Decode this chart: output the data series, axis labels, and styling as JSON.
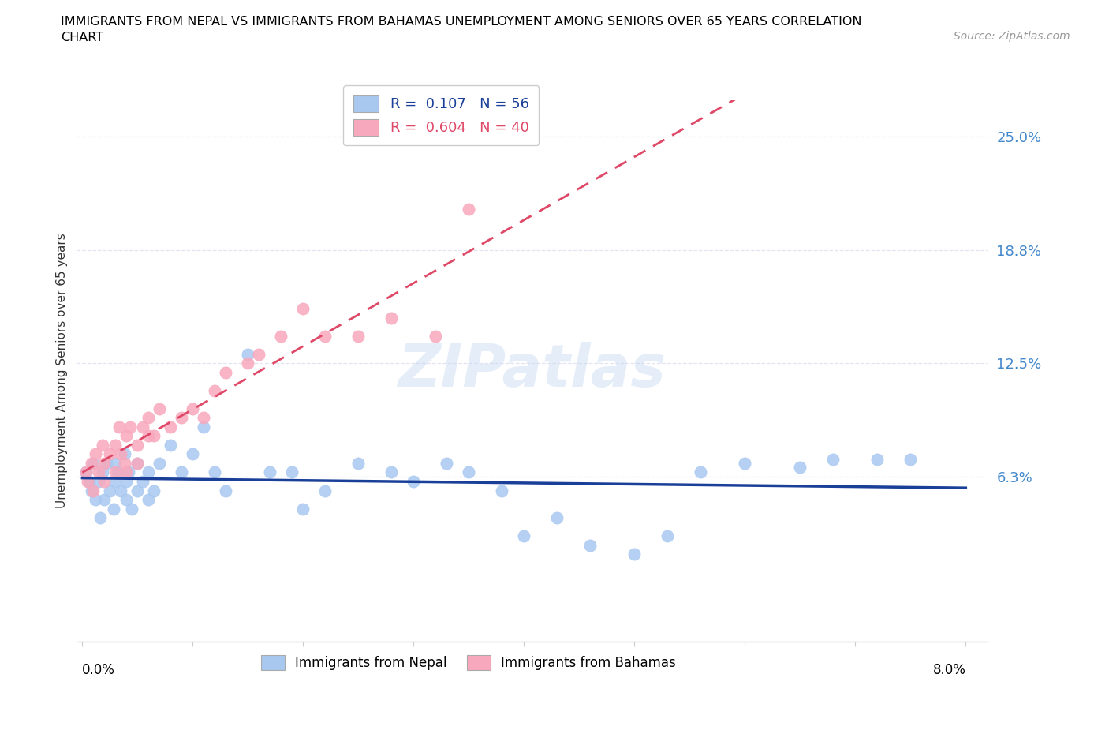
{
  "title_line1": "IMMIGRANTS FROM NEPAL VS IMMIGRANTS FROM BAHAMAS UNEMPLOYMENT AMONG SENIORS OVER 65 YEARS CORRELATION",
  "title_line2": "CHART",
  "source": "Source: ZipAtlas.com",
  "ylabel": "Unemployment Among Seniors over 65 years",
  "ytick_vals": [
    0.0,
    0.0625,
    0.125,
    0.1875,
    0.25
  ],
  "ytick_labels": [
    "",
    "6.3%",
    "12.5%",
    "18.8%",
    "25.0%"
  ],
  "xlim": [
    -0.0005,
    0.082
  ],
  "ylim": [
    -0.028,
    0.27
  ],
  "nepal_color": "#a8c8f0",
  "bahamas_color": "#f8a8bc",
  "nepal_line_color": "#1a3f99",
  "bahamas_line_color": "#e04868",
  "ytick_color": "#4488cc",
  "legend_nepal_R": "0.107",
  "legend_nepal_N": "56",
  "legend_bahamas_R": "0.604",
  "legend_bahamas_N": "40",
  "watermark": "ZIPatlas",
  "nepal_x": [
    0.0003,
    0.0006,
    0.0008,
    0.001,
    0.0012,
    0.0015,
    0.0016,
    0.0018,
    0.002,
    0.0022,
    0.0025,
    0.0028,
    0.003,
    0.003,
    0.0032,
    0.0035,
    0.0038,
    0.004,
    0.004,
    0.0042,
    0.0045,
    0.005,
    0.005,
    0.0055,
    0.006,
    0.006,
    0.0065,
    0.007,
    0.008,
    0.009,
    0.01,
    0.011,
    0.012,
    0.013,
    0.015,
    0.017,
    0.019,
    0.02,
    0.022,
    0.025,
    0.028,
    0.03,
    0.033,
    0.035,
    0.038,
    0.04,
    0.043,
    0.046,
    0.05,
    0.053,
    0.056,
    0.06,
    0.065,
    0.068,
    0.072,
    0.075
  ],
  "nepal_y": [
    0.065,
    0.06,
    0.055,
    0.07,
    0.05,
    0.06,
    0.04,
    0.065,
    0.05,
    0.07,
    0.055,
    0.045,
    0.07,
    0.06,
    0.065,
    0.055,
    0.075,
    0.05,
    0.06,
    0.065,
    0.045,
    0.055,
    0.07,
    0.06,
    0.065,
    0.05,
    0.055,
    0.07,
    0.08,
    0.065,
    0.075,
    0.09,
    0.065,
    0.055,
    0.13,
    0.065,
    0.065,
    0.045,
    0.055,
    0.07,
    0.065,
    0.06,
    0.07,
    0.065,
    0.055,
    0.03,
    0.04,
    0.025,
    0.02,
    0.03,
    0.065,
    0.07,
    0.068,
    0.072,
    0.072,
    0.072
  ],
  "bahamas_x": [
    0.0003,
    0.0005,
    0.0008,
    0.001,
    0.0012,
    0.0015,
    0.0018,
    0.002,
    0.002,
    0.0025,
    0.003,
    0.003,
    0.0033,
    0.0035,
    0.0038,
    0.004,
    0.004,
    0.0043,
    0.005,
    0.005,
    0.0055,
    0.006,
    0.006,
    0.0065,
    0.007,
    0.008,
    0.009,
    0.01,
    0.011,
    0.012,
    0.013,
    0.015,
    0.016,
    0.018,
    0.02,
    0.022,
    0.025,
    0.028,
    0.032,
    0.035
  ],
  "bahamas_y": [
    0.065,
    0.06,
    0.07,
    0.055,
    0.075,
    0.065,
    0.08,
    0.07,
    0.06,
    0.075,
    0.065,
    0.08,
    0.09,
    0.075,
    0.07,
    0.085,
    0.065,
    0.09,
    0.08,
    0.07,
    0.09,
    0.085,
    0.095,
    0.085,
    0.1,
    0.09,
    0.095,
    0.1,
    0.095,
    0.11,
    0.12,
    0.125,
    0.13,
    0.14,
    0.155,
    0.14,
    0.14,
    0.15,
    0.14,
    0.21
  ]
}
